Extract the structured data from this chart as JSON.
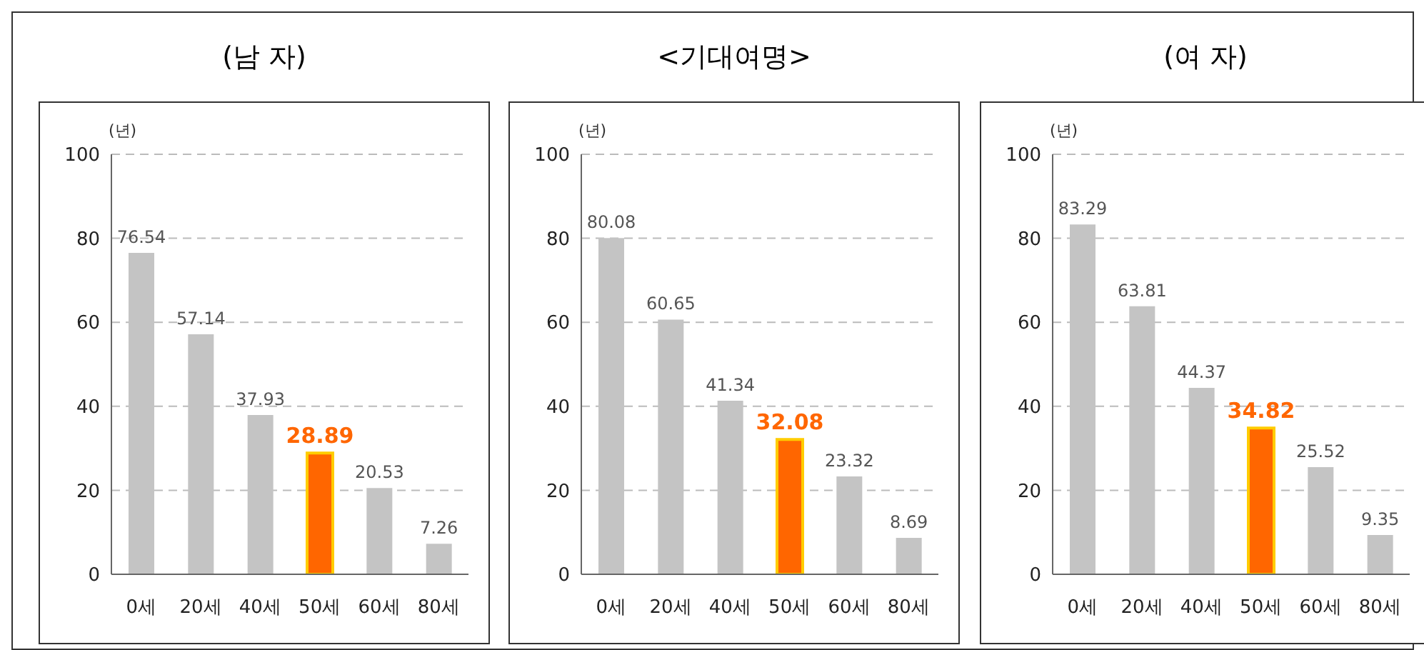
{
  "chart_data": [
    {
      "type": "bar",
      "title": "(남 자)",
      "ylabel": "(년)",
      "categories": [
        "0세",
        "20세",
        "40세",
        "50세",
        "60세",
        "80세"
      ],
      "values": [
        76.54,
        57.14,
        37.93,
        28.89,
        20.53,
        7.26
      ],
      "colors": [
        "#c4c4c4",
        "#c4c4c4",
        "#c4c4c4",
        "#ff6600",
        "#c4c4c4",
        "#c4c4c4"
      ],
      "ylim": [
        0,
        100
      ],
      "yticks": [
        0,
        20,
        40,
        60,
        80,
        100
      ],
      "grid": "y",
      "data_labels": true
    },
    {
      "type": "bar",
      "title": "<기대여명>",
      "ylabel": "(년)",
      "categories": [
        "0세",
        "20세",
        "40세",
        "50세",
        "60세",
        "80세"
      ],
      "values": [
        80.08,
        60.65,
        41.34,
        32.08,
        23.32,
        8.69
      ],
      "colors": [
        "#c4c4c4",
        "#c4c4c4",
        "#c4c4c4",
        "#ff6600",
        "#c4c4c4",
        "#c4c4c4"
      ],
      "ylim": [
        0,
        100
      ],
      "yticks": [
        0,
        20,
        40,
        60,
        80,
        100
      ],
      "grid": "y",
      "data_labels": true
    },
    {
      "type": "bar",
      "title": "(여 자)",
      "ylabel": "(년)",
      "categories": [
        "0세",
        "20세",
        "40세",
        "50세",
        "60세",
        "80세"
      ],
      "values": [
        83.29,
        63.81,
        44.37,
        34.82,
        25.52,
        9.35
      ],
      "colors": [
        "#c4c4c4",
        "#c4c4c4",
        "#c4c4c4",
        "#ff6600",
        "#c4c4c4",
        "#c4c4c4"
      ],
      "ylim": [
        0,
        100
      ],
      "yticks": [
        0,
        20,
        40,
        60,
        80,
        100
      ],
      "grid": "y",
      "data_labels": true
    }
  ]
}
